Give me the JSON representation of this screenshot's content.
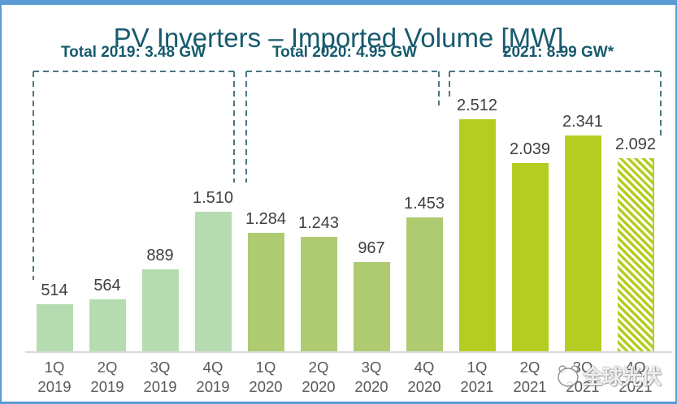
{
  "title": "PV Inverters – Imported Volume [MW]",
  "frame_color": "#5b9bd5",
  "watermark": {
    "text": "全球光伏",
    "logo": "panda-logo"
  },
  "chart_data": {
    "type": "bar",
    "title": "PV Inverters – Imported Volume [MW]",
    "unit": "MW",
    "grid": false,
    "y_axis_visible": false,
    "value_labels_shown": true,
    "colors": {
      "2019": "#b5dcb0",
      "2020": "#aecb72",
      "2021": "#b5cd21"
    },
    "dashed_outline_color": "#4d7582",
    "axis_line_color": "#d9d9d9",
    "totals": [
      {
        "year": "2019",
        "label": "Total 2019: 3.48 GW",
        "gw": 3.48
      },
      {
        "year": "2020",
        "label": "Total 2020: 4.95 GW",
        "gw": 4.95
      },
      {
        "year": "2021",
        "label": "2021: 8.99 GW*",
        "gw": 8.99
      }
    ],
    "categories": [
      "1Q 2019",
      "2Q 2019",
      "3Q 2019",
      "4Q 2019",
      "1Q 2020",
      "2Q 2020",
      "3Q 2020",
      "4Q 2020",
      "1Q 2021",
      "2Q 2021",
      "3Q 2021",
      "4Q 2021"
    ],
    "values": [
      514,
      564,
      889,
      1510,
      1284,
      1243,
      967,
      1453,
      2512,
      2039,
      2341,
      2092
    ],
    "bars": [
      {
        "quarter": "1Q",
        "year": "2019",
        "value_mw": 514,
        "label": "514",
        "color": "#b5dcb0",
        "hatched": false
      },
      {
        "quarter": "2Q",
        "year": "2019",
        "value_mw": 564,
        "label": "564",
        "color": "#b5dcb0",
        "hatched": false
      },
      {
        "quarter": "3Q",
        "year": "2019",
        "value_mw": 889,
        "label": "889",
        "color": "#b5dcb0",
        "hatched": false
      },
      {
        "quarter": "4Q",
        "year": "2019",
        "value_mw": 1510,
        "label": "1.510",
        "color": "#b5dcb0",
        "hatched": false
      },
      {
        "quarter": "1Q",
        "year": "2020",
        "value_mw": 1284,
        "label": "1.284",
        "color": "#aecb72",
        "hatched": false
      },
      {
        "quarter": "2Q",
        "year": "2020",
        "value_mw": 1243,
        "label": "1.243",
        "color": "#aecb72",
        "hatched": false
      },
      {
        "quarter": "3Q",
        "year": "2020",
        "value_mw": 967,
        "label": "967",
        "color": "#aecb72",
        "hatched": false
      },
      {
        "quarter": "4Q",
        "year": "2020",
        "value_mw": 1453,
        "label": "1.453",
        "color": "#aecb72",
        "hatched": false
      },
      {
        "quarter": "1Q",
        "year": "2021",
        "value_mw": 2512,
        "label": "2.512",
        "color": "#b5cd21",
        "hatched": false
      },
      {
        "quarter": "2Q",
        "year": "2021",
        "value_mw": 2039,
        "label": "2.039",
        "color": "#b5cd21",
        "hatched": false
      },
      {
        "quarter": "3Q",
        "year": "2021",
        "value_mw": 2341,
        "label": "2.341",
        "color": "#b5cd21",
        "hatched": false
      },
      {
        "quarter": "4Q",
        "year": "2021",
        "value_mw": 2092,
        "label": "2.092",
        "color": "#b5cd21",
        "hatched": true
      }
    ]
  }
}
